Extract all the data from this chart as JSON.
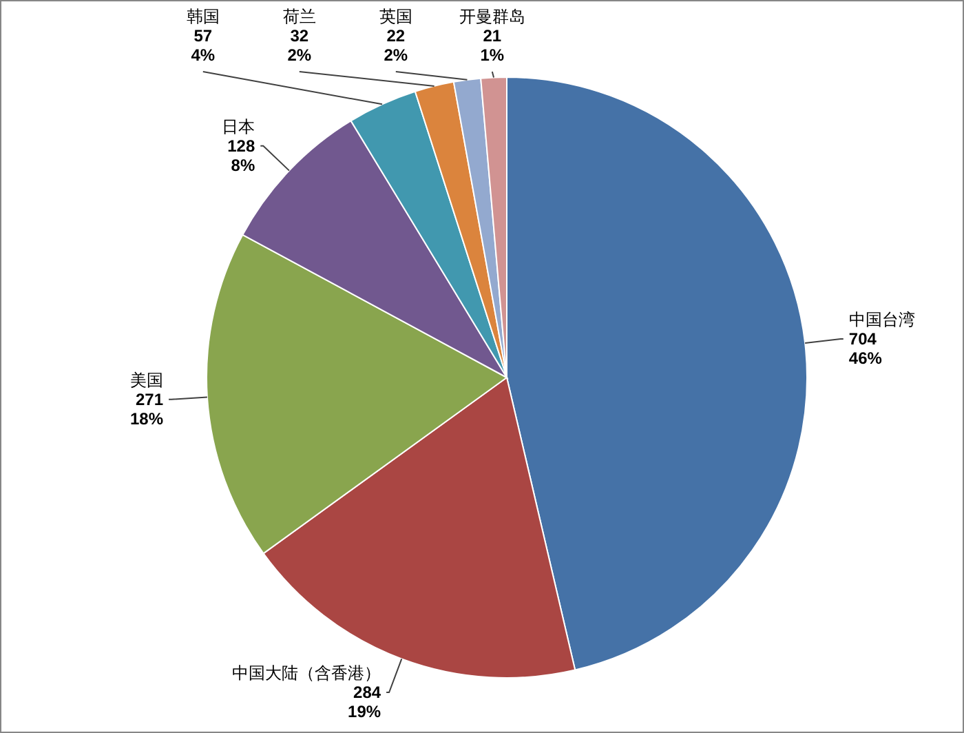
{
  "chart_data": {
    "type": "pie",
    "categories": [
      "中国台湾",
      "中国大陆（含香港）",
      "美国",
      "日本",
      "韩国",
      "荷兰",
      "英国",
      "开曼群岛"
    ],
    "values": [
      704,
      284,
      271,
      128,
      57,
      32,
      22,
      21
    ],
    "colors": [
      "#4572a7",
      "#aa4643",
      "#89a54e",
      "#71588f",
      "#4198af",
      "#db843d",
      "#93a9cf",
      "#d19392"
    ],
    "value_labels": [
      "704\n46%",
      "284\n19%",
      "271\n18%",
      "128\n8%",
      "57\n4%",
      "32\n2%",
      "22\n2%",
      "21\n1%"
    ]
  }
}
